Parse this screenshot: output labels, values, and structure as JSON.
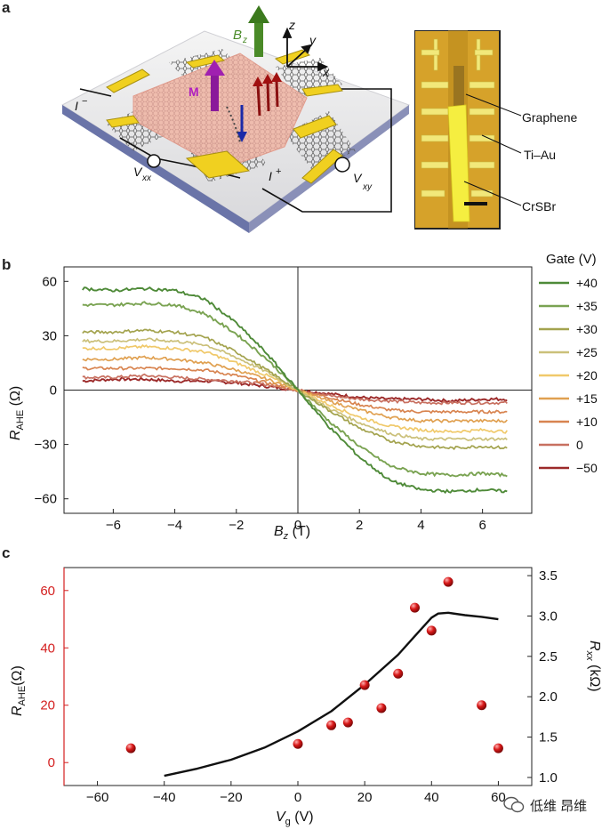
{
  "panels": {
    "a": "a",
    "b": "b",
    "c": "c"
  },
  "panel_a": {
    "bz_label": "B",
    "bz_sub": "z",
    "axis_z": "z",
    "axis_y": "y",
    "axis_x": "x",
    "m_label": "M",
    "i_minus": "I",
    "i_minus_sup": "−",
    "i_plus": "I",
    "i_plus_sup": "+",
    "vxx": "V",
    "vxx_sub": "xx",
    "vxy": "V",
    "vxy_sub": "xy",
    "micrograph_labels": [
      "Graphene",
      "Ti–Au",
      "CrSBr"
    ]
  },
  "panel_b": {
    "legend_title": "Gate (V)",
    "xlabel_main": "B",
    "xlabel_sub": "z",
    "xlabel_unit": " (T)",
    "ylabel_main": "R",
    "ylabel_sub": "AHE",
    "ylabel_unit": " (Ω)"
  },
  "panel_c": {
    "xlabel_main": "V",
    "xlabel_sub": "g",
    "xlabel_unit": " (V)",
    "ylabel_left_main": "R",
    "ylabel_left_sub": "AHE",
    "ylabel_left_unit": "(Ω)",
    "ylabel_right_main": "R",
    "ylabel_right_sub": "xx",
    "ylabel_right_unit": " (kΩ)",
    "left_axis_color": "#d42020",
    "right_axis_color": "#222222"
  },
  "watermark": {
    "text": "低维 昂维"
  },
  "chart_data": [
    {
      "type": "line",
      "panel": "b",
      "xlabel": "Bz (T)",
      "ylabel": "RAHE (Ω)",
      "xlim": [
        -7.6,
        7.6
      ],
      "ylim": [
        -68,
        68
      ],
      "xticks": [
        -6,
        -4,
        -2,
        0,
        2,
        4,
        6
      ],
      "yticks": [
        -60,
        -30,
        0,
        30,
        60
      ],
      "x_range": [
        -7,
        6.8
      ],
      "legend_placement": "right",
      "series": [
        {
          "name": "+40",
          "color": "#4e8a38",
          "amplitude": 56,
          "width": 1.9,
          "x": [
            -7,
            -6,
            -5,
            -4,
            -3,
            -2,
            -1,
            0,
            1,
            2,
            3,
            4,
            5,
            6,
            6.8
          ],
          "values": [
            56,
            55,
            56,
            55,
            50,
            37,
            20,
            0,
            -20,
            -37,
            -50,
            -55,
            -56,
            -55,
            -56
          ]
        },
        {
          "name": "+35",
          "color": "#7aa352",
          "amplitude": 47,
          "width": 1.9,
          "x": [
            -7,
            -6,
            -5,
            -4,
            -3,
            -2,
            -1,
            0,
            1,
            2,
            3,
            4,
            5,
            6,
            6.8
          ],
          "values": [
            47,
            47,
            48,
            47,
            42,
            31,
            17,
            0,
            -17,
            -31,
            -42,
            -46,
            -47,
            -46,
            -47
          ]
        },
        {
          "name": "+30",
          "color": "#a3a34e",
          "amplitude": 32,
          "width": 1.7,
          "x": [
            -7,
            -6,
            -5,
            -4,
            -3,
            -2,
            -1,
            0,
            1,
            2,
            3,
            4,
            5,
            6,
            6.8
          ],
          "values": [
            32,
            32,
            33,
            32,
            29,
            21,
            11,
            0,
            -11,
            -21,
            -28,
            -31,
            -32,
            -31,
            -32
          ]
        },
        {
          "name": "+25",
          "color": "#cbc07a",
          "amplitude": 28,
          "width": 1.7,
          "x": [
            -7,
            -6,
            -5,
            -4,
            -3,
            -2,
            -1,
            0,
            1,
            2,
            3,
            4,
            5,
            6,
            6.8
          ],
          "values": [
            27,
            27,
            28,
            27,
            25,
            18,
            10,
            0,
            -10,
            -18,
            -24,
            -27,
            -27,
            -27,
            -27
          ]
        },
        {
          "name": "+20",
          "color": "#f0c96a",
          "amplitude": 23,
          "width": 1.7,
          "x": [
            -7,
            -6,
            -5,
            -4,
            -3,
            -2,
            -1,
            0,
            1,
            2,
            3,
            4,
            5,
            6,
            6.8
          ],
          "values": [
            23,
            23,
            24,
            23,
            21,
            15,
            8,
            0,
            -8,
            -15,
            -20,
            -22,
            -23,
            -22,
            -23
          ]
        },
        {
          "name": "+15",
          "color": "#e0a050",
          "amplitude": 17,
          "width": 1.7,
          "x": [
            -7,
            -6,
            -5,
            -4,
            -3,
            -2,
            -1,
            0,
            1,
            2,
            3,
            4,
            5,
            6,
            6.8
          ],
          "values": [
            17,
            17,
            18,
            17,
            15,
            11,
            6,
            0,
            -6,
            -11,
            -15,
            -17,
            -17,
            -17,
            -17
          ]
        },
        {
          "name": "+10",
          "color": "#d88450",
          "amplitude": 12,
          "width": 1.7,
          "x": [
            -7,
            -6,
            -5,
            -4,
            -3,
            -2,
            -1,
            0,
            1,
            2,
            3,
            4,
            5,
            6,
            6.8
          ],
          "values": [
            12,
            12,
            12,
            12,
            11,
            8,
            4,
            0,
            -4,
            -8,
            -11,
            -12,
            -12,
            -12,
            -12
          ]
        },
        {
          "name": "0",
          "color": "#c87060",
          "amplitude": 7,
          "width": 1.7,
          "x": [
            -7,
            -6,
            -5,
            -4,
            -3,
            -2,
            -1,
            0,
            1,
            2,
            3,
            4,
            5,
            6,
            6.8
          ],
          "values": [
            7,
            7,
            8,
            7,
            6,
            5,
            3,
            0,
            -3,
            -5,
            -6,
            -7,
            -7,
            -7,
            -7
          ]
        },
        {
          "name": "−50",
          "color": "#9c2a2a",
          "amplitude": 5,
          "width": 1.9,
          "x": [
            -7,
            -6,
            -5,
            -4,
            -3,
            -2,
            -1,
            0,
            1,
            2,
            3,
            4,
            5,
            6,
            6.8
          ],
          "values": [
            5,
            6,
            6,
            5,
            5,
            4,
            2,
            0,
            -2,
            -4,
            -5,
            -5,
            -6,
            -5,
            -5
          ]
        }
      ]
    },
    {
      "type": "scatter",
      "panel": "c",
      "xlabel": "Vg (V)",
      "ylabel_left": "RAHE (Ω)",
      "ylabel_right": "Rxx (kΩ)",
      "xlim": [
        -70,
        70
      ],
      "ylim_left": [
        -8,
        68
      ],
      "ylim_right": [
        0.9,
        3.6
      ],
      "xticks": [
        -60,
        -40,
        -20,
        0,
        20,
        40,
        60
      ],
      "yticks_left": [
        0,
        20,
        40,
        60
      ],
      "yticks_right": [
        1.0,
        1.5,
        2.0,
        2.5,
        3.0,
        3.5
      ],
      "scatter_series": {
        "axis": "left",
        "color": "#d81818",
        "x": [
          -50,
          0,
          10,
          15,
          20,
          25,
          30,
          35,
          40,
          45,
          55,
          60
        ],
        "y": [
          5,
          6.5,
          13,
          14,
          27,
          19,
          31,
          54,
          46,
          63,
          20,
          5
        ]
      },
      "line_series": {
        "axis": "right",
        "color": "#111111",
        "x": [
          -40,
          -30,
          -20,
          -10,
          0,
          10,
          20,
          30,
          35,
          40,
          42,
          45,
          50,
          55,
          60
        ],
        "y": [
          1.02,
          1.11,
          1.22,
          1.37,
          1.57,
          1.82,
          2.15,
          2.52,
          2.75,
          2.98,
          3.03,
          3.04,
          3.01,
          2.99,
          2.96
        ]
      }
    }
  ]
}
